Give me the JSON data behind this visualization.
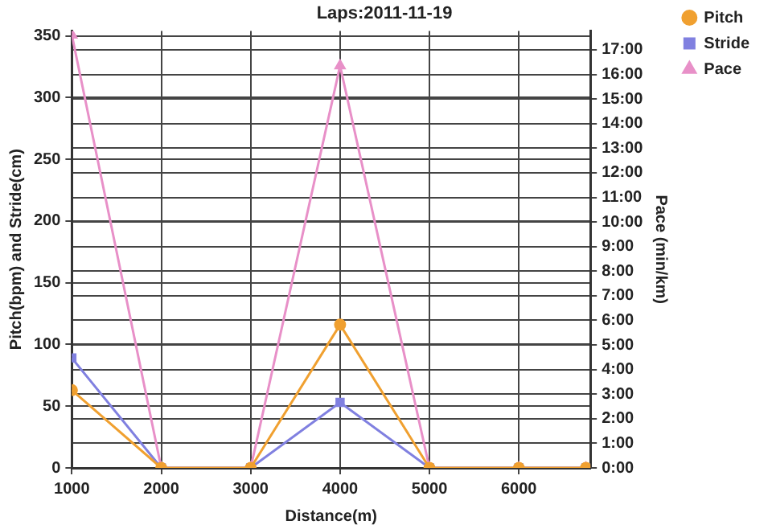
{
  "chart_data": {
    "type": "line",
    "title": "Laps:2011-11-19",
    "xlabel": "Distance(m)",
    "ylabel": "Pitch(bpm) and Stride(cm)",
    "y2label": "Pace (min/km)",
    "x": [
      1000,
      2000,
      3000,
      4000,
      5000,
      6000,
      6750
    ],
    "series": [
      {
        "name": "Pitch",
        "color": "#f0a030",
        "marker": "circle",
        "values": [
          63,
          0,
          0,
          116,
          0,
          0,
          0
        ]
      },
      {
        "name": "Stride",
        "color": "#8080e0",
        "marker": "square",
        "values": [
          89,
          0,
          0,
          53,
          0,
          0,
          0
        ]
      },
      {
        "name": "Pace",
        "color": "#e890c8",
        "marker": "triangle",
        "axis": "y2",
        "values": [
          17.6,
          0,
          0,
          16.35,
          0,
          0,
          0
        ]
      }
    ],
    "xlim": [
      1000,
      6800
    ],
    "xticks": [
      1000,
      2000,
      3000,
      4000,
      5000,
      6000
    ],
    "ylim": [
      0,
      354
    ],
    "yticks": [
      0,
      50,
      100,
      150,
      200,
      250,
      300,
      350
    ],
    "y2lim": [
      0,
      17.77
    ],
    "y2ticks": [
      {
        "value": 0,
        "label": "0:00"
      },
      {
        "value": 1,
        "label": "1:00"
      },
      {
        "value": 2,
        "label": "2:00"
      },
      {
        "value": 3,
        "label": "3:00"
      },
      {
        "value": 4,
        "label": "4:00"
      },
      {
        "value": 5,
        "label": "5:00"
      },
      {
        "value": 6,
        "label": "6:00"
      },
      {
        "value": 7,
        "label": "7:00"
      },
      {
        "value": 8,
        "label": "8:00"
      },
      {
        "value": 9,
        "label": "9:00"
      },
      {
        "value": 10,
        "label": "10:00"
      },
      {
        "value": 11,
        "label": "11:00"
      },
      {
        "value": 12,
        "label": "12:00"
      },
      {
        "value": 13,
        "label": "13:00"
      },
      {
        "value": 14,
        "label": "14:00"
      },
      {
        "value": 15,
        "label": "15:00"
      },
      {
        "value": 16,
        "label": "16:00"
      },
      {
        "value": 17,
        "label": "17:00"
      }
    ],
    "grid": true,
    "legend": "top right",
    "line_style": "solid"
  }
}
